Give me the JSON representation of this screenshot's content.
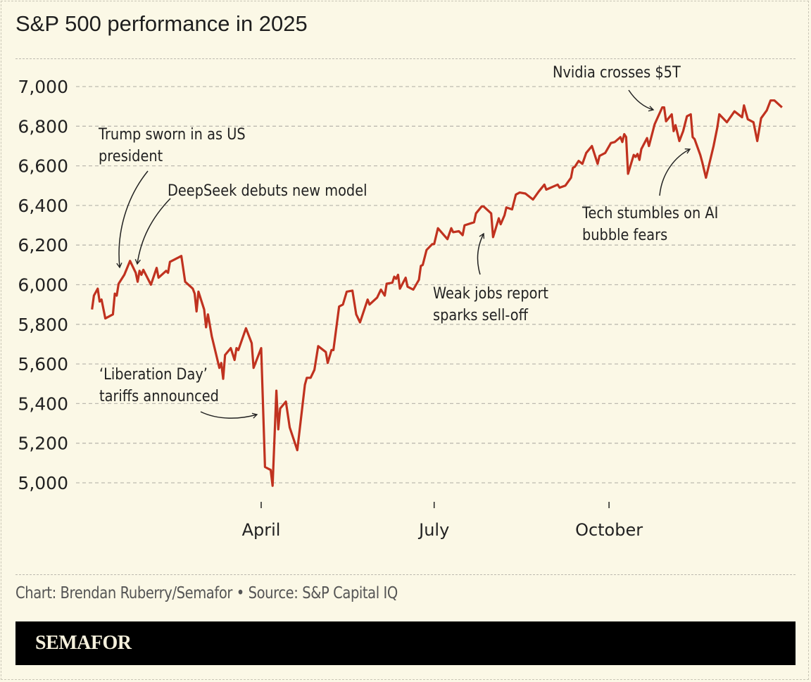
{
  "title": "S&P 500 performance in 2025",
  "credit": "Chart: Brendan Ruberry/Semafor • Source: S&P Capital IQ",
  "brand": "SEMAFOR",
  "colors": {
    "background": "#fbf8e6",
    "line": "#c0321f",
    "grid": "#bdbab0",
    "text": "#222222",
    "brand_bar": "#000000"
  },
  "chart_data": {
    "type": "line",
    "title": "S&P 500 performance in 2025",
    "xlabel": "",
    "ylabel": "",
    "ylim": [
      5000,
      7000
    ],
    "grid": true,
    "y_ticks": [
      5000,
      5200,
      5400,
      5600,
      5800,
      6000,
      6200,
      6400,
      6600,
      6800,
      7000
    ],
    "y_tick_labels": [
      "5,000",
      "5,200",
      "5,400",
      "5,600",
      "5,800",
      "6,000",
      "6,200",
      "6,400",
      "6,600",
      "6,800",
      "7,000"
    ],
    "x_ticks": [
      {
        "date": "2025-04-01",
        "label": "April"
      },
      {
        "date": "2025-07-01",
        "label": "July"
      },
      {
        "date": "2025-10-01",
        "label": "October"
      }
    ],
    "series": [
      {
        "points": [
          [
            "2025-01-02",
            5875
          ],
          [
            "2025-01-03",
            5945
          ],
          [
            "2025-01-05",
            5980
          ],
          [
            "2025-01-06",
            5915
          ],
          [
            "2025-01-07",
            5925
          ],
          [
            "2025-01-09",
            5830
          ],
          [
            "2025-01-13",
            5850
          ],
          [
            "2025-01-14",
            5955
          ],
          [
            "2025-01-15",
            5945
          ],
          [
            "2025-01-16",
            6005
          ],
          [
            "2025-01-19",
            6050
          ],
          [
            "2025-01-22",
            6120
          ],
          [
            "2025-01-25",
            6060
          ],
          [
            "2025-01-26",
            6015
          ],
          [
            "2025-01-27",
            6070
          ],
          [
            "2025-01-28",
            6050
          ],
          [
            "2025-01-29",
            6075
          ],
          [
            "2025-02-02",
            6000
          ],
          [
            "2025-02-05",
            6085
          ],
          [
            "2025-02-06",
            6035
          ],
          [
            "2025-02-10",
            6070
          ],
          [
            "2025-02-11",
            6060
          ],
          [
            "2025-02-12",
            6115
          ],
          [
            "2025-02-18",
            6145
          ],
          [
            "2025-02-20",
            6015
          ],
          [
            "2025-02-24",
            5980
          ],
          [
            "2025-02-25",
            5955
          ],
          [
            "2025-02-26",
            5865
          ],
          [
            "2025-02-27",
            5965
          ],
          [
            "2025-03-02",
            5875
          ],
          [
            "2025-03-03",
            5785
          ],
          [
            "2025-03-04",
            5850
          ],
          [
            "2025-03-06",
            5740
          ],
          [
            "2025-03-10",
            5580
          ],
          [
            "2025-03-11",
            5605
          ],
          [
            "2025-03-12",
            5525
          ],
          [
            "2025-03-13",
            5645
          ],
          [
            "2025-03-16",
            5680
          ],
          [
            "2025-03-18",
            5620
          ],
          [
            "2025-03-19",
            5680
          ],
          [
            "2025-03-20",
            5670
          ],
          [
            "2025-03-24",
            5780
          ],
          [
            "2025-03-27",
            5705
          ],
          [
            "2025-03-28",
            5580
          ],
          [
            "2025-04-01",
            5680
          ],
          [
            "2025-04-03",
            5080
          ],
          [
            "2025-04-06",
            5065
          ],
          [
            "2025-04-07",
            4985
          ],
          [
            "2025-04-09",
            5465
          ],
          [
            "2025-04-10",
            5270
          ],
          [
            "2025-04-11",
            5375
          ],
          [
            "2025-04-14",
            5410
          ],
          [
            "2025-04-16",
            5280
          ],
          [
            "2025-04-20",
            5165
          ],
          [
            "2025-04-24",
            5495
          ],
          [
            "2025-04-25",
            5530
          ],
          [
            "2025-04-27",
            5530
          ],
          [
            "2025-04-29",
            5570
          ],
          [
            "2025-05-01",
            5690
          ],
          [
            "2025-05-05",
            5660
          ],
          [
            "2025-05-06",
            5605
          ],
          [
            "2025-05-08",
            5670
          ],
          [
            "2025-05-09",
            5670
          ],
          [
            "2025-05-12",
            5890
          ],
          [
            "2025-05-14",
            5900
          ],
          [
            "2025-05-16",
            5965
          ],
          [
            "2025-05-19",
            5970
          ],
          [
            "2025-05-21",
            5850
          ],
          [
            "2025-05-23",
            5810
          ],
          [
            "2025-05-27",
            5925
          ],
          [
            "2025-05-28",
            5900
          ],
          [
            "2025-06-01",
            5935
          ],
          [
            "2025-06-03",
            5975
          ],
          [
            "2025-06-05",
            5945
          ],
          [
            "2025-06-06",
            6005
          ],
          [
            "2025-06-09",
            6010
          ],
          [
            "2025-06-10",
            6040
          ],
          [
            "2025-06-11",
            6030
          ],
          [
            "2025-06-12",
            6050
          ],
          [
            "2025-06-13",
            5980
          ],
          [
            "2025-06-16",
            6035
          ],
          [
            "2025-06-17",
            5990
          ],
          [
            "2025-06-20",
            5975
          ],
          [
            "2025-06-23",
            6025
          ],
          [
            "2025-06-24",
            6095
          ],
          [
            "2025-06-25",
            6100
          ],
          [
            "2025-06-27",
            6175
          ],
          [
            "2025-06-30",
            6205
          ],
          [
            "2025-07-01",
            6205
          ],
          [
            "2025-07-03",
            6285
          ],
          [
            "2025-07-08",
            6230
          ],
          [
            "2025-07-10",
            6285
          ],
          [
            "2025-07-11",
            6265
          ],
          [
            "2025-07-14",
            6270
          ],
          [
            "2025-07-16",
            6250
          ],
          [
            "2025-07-17",
            6300
          ],
          [
            "2025-07-22",
            6315
          ],
          [
            "2025-07-23",
            6360
          ],
          [
            "2025-07-26",
            6395
          ],
          [
            "2025-07-27",
            6395
          ],
          [
            "2025-07-31",
            6360
          ],
          [
            "2025-08-01",
            6240
          ],
          [
            "2025-08-04",
            6335
          ],
          [
            "2025-08-05",
            6305
          ],
          [
            "2025-08-07",
            6350
          ],
          [
            "2025-08-08",
            6390
          ],
          [
            "2025-08-11",
            6380
          ],
          [
            "2025-08-13",
            6455
          ],
          [
            "2025-08-15",
            6465
          ],
          [
            "2025-08-18",
            6460
          ],
          [
            "2025-08-22",
            6430
          ],
          [
            "2025-08-25",
            6470
          ],
          [
            "2025-08-28",
            6505
          ],
          [
            "2025-08-29",
            6480
          ],
          [
            "2025-09-04",
            6505
          ],
          [
            "2025-09-05",
            6490
          ],
          [
            "2025-09-08",
            6500
          ],
          [
            "2025-09-11",
            6540
          ],
          [
            "2025-09-12",
            6590
          ],
          [
            "2025-09-13",
            6595
          ],
          [
            "2025-09-15",
            6625
          ],
          [
            "2025-09-17",
            6610
          ],
          [
            "2025-09-19",
            6665
          ],
          [
            "2025-09-22",
            6700
          ],
          [
            "2025-09-25",
            6610
          ],
          [
            "2025-09-26",
            6650
          ],
          [
            "2025-09-29",
            6665
          ],
          [
            "2025-10-02",
            6715
          ],
          [
            "2025-10-04",
            6720
          ],
          [
            "2025-10-07",
            6745
          ],
          [
            "2025-10-08",
            6720
          ],
          [
            "2025-10-09",
            6760
          ],
          [
            "2025-10-10",
            6745
          ],
          [
            "2025-10-11",
            6560
          ],
          [
            "2025-10-14",
            6655
          ],
          [
            "2025-10-15",
            6645
          ],
          [
            "2025-10-16",
            6660
          ],
          [
            "2025-10-17",
            6630
          ],
          [
            "2025-10-18",
            6685
          ],
          [
            "2025-10-21",
            6740
          ],
          [
            "2025-10-22",
            6700
          ],
          [
            "2025-10-25",
            6810
          ],
          [
            "2025-10-29",
            6895
          ],
          [
            "2025-10-30",
            6895
          ],
          [
            "2025-10-31",
            6825
          ],
          [
            "2025-11-03",
            6860
          ],
          [
            "2025-11-04",
            6775
          ],
          [
            "2025-11-05",
            6805
          ],
          [
            "2025-11-07",
            6725
          ],
          [
            "2025-11-09",
            6775
          ],
          [
            "2025-11-11",
            6850
          ],
          [
            "2025-11-13",
            6860
          ],
          [
            "2025-11-14",
            6745
          ],
          [
            "2025-11-15",
            6735
          ],
          [
            "2025-11-18",
            6655
          ],
          [
            "2025-11-19",
            6620
          ],
          [
            "2025-11-21",
            6540
          ],
          [
            "2025-11-23",
            6620
          ],
          [
            "2025-11-25",
            6700
          ],
          [
            "2025-11-27",
            6795
          ],
          [
            "2025-11-28",
            6860
          ],
          [
            "2025-12-02",
            6820
          ],
          [
            "2025-12-06",
            6875
          ],
          [
            "2025-12-10",
            6845
          ],
          [
            "2025-12-11",
            6905
          ],
          [
            "2025-12-13",
            6835
          ],
          [
            "2025-12-16",
            6820
          ],
          [
            "2025-12-18",
            6725
          ],
          [
            "2025-12-20",
            6840
          ],
          [
            "2025-12-23",
            6880
          ],
          [
            "2025-12-25",
            6930
          ],
          [
            "2025-12-27",
            6930
          ],
          [
            "2025-12-31",
            6895
          ]
        ]
      }
    ],
    "annotations": [
      {
        "lines": [
          "Trump sworn in as US",
          "president"
        ]
      },
      {
        "lines": [
          "DeepSeek debuts new model"
        ]
      },
      {
        "lines": [
          "‘Liberation Day’",
          "tariffs announced"
        ]
      },
      {
        "lines": [
          "Weak jobs report",
          "sparks sell-off"
        ]
      },
      {
        "lines": [
          "Nvidia crosses $5T"
        ]
      },
      {
        "lines": [
          "Tech stumbles on AI",
          "bubble fears"
        ]
      }
    ]
  }
}
